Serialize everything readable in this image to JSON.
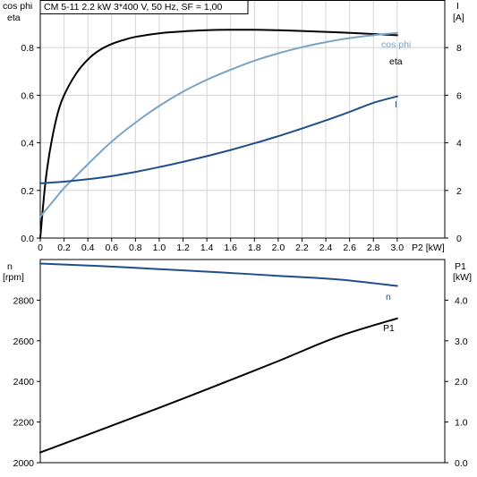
{
  "title": "CM 5-11   2.2 kW   3*400 V, 50 Hz, SF = 1,00",
  "colors": {
    "eta": "#000000",
    "cos_phi": "#7ba3c4",
    "I": "#1f4f8a",
    "n": "#1f4f8a",
    "P1": "#000000",
    "grid": "#d4d4d4"
  },
  "chart_data": [
    {
      "type": "line",
      "title": "CM 5-11   2.2 kW   3*400 V, 50 Hz, SF = 1,00",
      "xlabel": "P2 [kW]",
      "ylabel_left": [
        "cos phi",
        "eta"
      ],
      "ylabel_right": [
        "I",
        "[A]"
      ],
      "xlim": [
        0,
        3.4
      ],
      "ylim_left": [
        0,
        1.0
      ],
      "ylim_right": [
        0,
        10
      ],
      "grid": true,
      "x_ticks": [
        "0",
        "0.2",
        "0.4",
        "0.6",
        "0.8",
        "1.0",
        "1.2",
        "1.4",
        "1.6",
        "1.8",
        "2.0",
        "2.2",
        "2.4",
        "2.6",
        "2.8",
        "3.0"
      ],
      "y_ticks_left": [
        "0.0",
        "0.2",
        "0.4",
        "0.6",
        "0.8"
      ],
      "y_ticks_right": [
        "0",
        "2",
        "4",
        "6",
        "8"
      ],
      "series": [
        {
          "name": "eta",
          "axis": "left",
          "color": "#000000",
          "x": [
            0.0,
            0.03,
            0.06,
            0.1,
            0.15,
            0.2,
            0.3,
            0.4,
            0.5,
            0.6,
            0.7,
            0.8,
            1.0,
            1.2,
            1.4,
            1.6,
            1.8,
            2.0,
            2.2,
            2.4,
            2.6,
            2.8,
            3.0
          ],
          "y": [
            0.0,
            0.17,
            0.3,
            0.42,
            0.53,
            0.6,
            0.69,
            0.75,
            0.79,
            0.815,
            0.832,
            0.845,
            0.86,
            0.868,
            0.873,
            0.875,
            0.875,
            0.873,
            0.87,
            0.866,
            0.862,
            0.857,
            0.852
          ]
        },
        {
          "name": "cos phi",
          "axis": "left",
          "color": "#7ba3c4",
          "x": [
            0.0,
            0.1,
            0.2,
            0.3,
            0.4,
            0.6,
            0.8,
            1.0,
            1.2,
            1.4,
            1.6,
            1.8,
            2.0,
            2.2,
            2.4,
            2.6,
            2.8,
            3.0
          ],
          "y": [
            0.09,
            0.15,
            0.21,
            0.26,
            0.31,
            0.405,
            0.485,
            0.555,
            0.615,
            0.665,
            0.707,
            0.745,
            0.776,
            0.802,
            0.823,
            0.84,
            0.852,
            0.862
          ]
        },
        {
          "name": "I",
          "axis": "right",
          "color": "#1f4f8a",
          "x": [
            0.0,
            0.2,
            0.4,
            0.6,
            0.8,
            1.0,
            1.2,
            1.4,
            1.6,
            1.8,
            2.0,
            2.2,
            2.4,
            2.6,
            2.8,
            3.0
          ],
          "y": [
            2.3,
            2.37,
            2.47,
            2.6,
            2.78,
            2.98,
            3.2,
            3.44,
            3.7,
            3.98,
            4.28,
            4.6,
            4.94,
            5.3,
            5.68,
            5.95
          ]
        }
      ]
    },
    {
      "type": "line",
      "xlim": [
        0,
        3.4
      ],
      "ylabel_left": [
        "n",
        "[rpm]"
      ],
      "ylabel_right": [
        "P1",
        "[kW]"
      ],
      "ylim_left": [
        2000,
        3000
      ],
      "ylim_right": [
        0,
        5
      ],
      "grid": false,
      "y_ticks_left": [
        "2000",
        "2200",
        "2400",
        "2600",
        "2800"
      ],
      "y_ticks_right": [
        "0.0",
        "1.0",
        "2.0",
        "3.0",
        "4.0"
      ],
      "series": [
        {
          "name": "n",
          "axis": "left",
          "color": "#1f4f8a",
          "x": [
            0.0,
            0.5,
            1.0,
            1.5,
            2.0,
            2.5,
            3.0
          ],
          "y": [
            2980,
            2968,
            2953,
            2937,
            2920,
            2902,
            2870
          ]
        },
        {
          "name": "P1",
          "axis": "right",
          "color": "#000000",
          "x": [
            0.0,
            0.5,
            1.0,
            1.5,
            2.0,
            2.5,
            3.0
          ],
          "y": [
            0.25,
            0.8,
            1.35,
            1.92,
            2.5,
            3.1,
            3.55
          ]
        }
      ]
    }
  ]
}
